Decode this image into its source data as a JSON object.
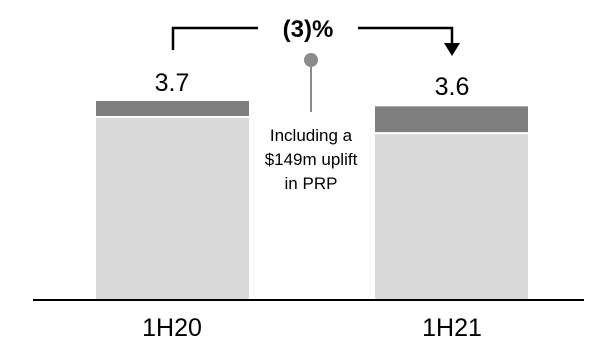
{
  "chart_data": {
    "type": "bar",
    "stacked": true,
    "categories": [
      "1H20",
      "1H21"
    ],
    "totals": [
      3.7,
      3.6
    ],
    "total_labels": [
      "3.7",
      "3.6"
    ],
    "series": [
      {
        "values": [
          3.4,
          3.1
        ],
        "color": "#d9d9d9"
      },
      {
        "values": [
          0.3,
          0.5
        ],
        "color": "#7f7f7f"
      }
    ],
    "ylim": [
      0,
      3.7
    ],
    "change_label": "(3)%",
    "annotation": {
      "lines": [
        "Including a",
        "$149m uplift",
        "in PRP"
      ]
    },
    "grid": false,
    "legend": "none"
  }
}
